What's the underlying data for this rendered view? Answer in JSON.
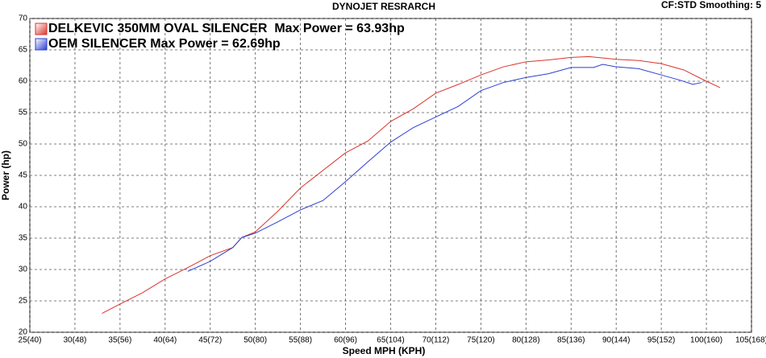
{
  "chart_data": {
    "type": "line",
    "title": "DYNOJET RESRARCH",
    "subtitle": "CF:STD Smoothing: 5",
    "x_label": "Speed MPH (KPH)",
    "y_label": "Power (hp)",
    "xlim": [
      25,
      105
    ],
    "ylim": [
      20,
      70
    ],
    "xticks": [
      {
        "value": 25,
        "label": "25(40)"
      },
      {
        "value": 30,
        "label": "30(48)"
      },
      {
        "value": 35,
        "label": "35(56)"
      },
      {
        "value": 40,
        "label": "40(64)"
      },
      {
        "value": 45,
        "label": "45(72)"
      },
      {
        "value": 50,
        "label": "50(80)"
      },
      {
        "value": 55,
        "label": "55(88)"
      },
      {
        "value": 60,
        "label": "60(96)"
      },
      {
        "value": 65,
        "label": "65(104)"
      },
      {
        "value": 70,
        "label": "70(112)"
      },
      {
        "value": 75,
        "label": "75(120)"
      },
      {
        "value": 80,
        "label": "80(128)"
      },
      {
        "value": 85,
        "label": "85(136)"
      },
      {
        "value": 90,
        "label": "90(144)"
      },
      {
        "value": 95,
        "label": "95(152)"
      },
      {
        "value": 100,
        "label": "100(160)"
      },
      {
        "value": 105,
        "label": "105(168)"
      }
    ],
    "yticks": [
      20,
      25,
      30,
      35,
      40,
      45,
      50,
      55,
      60,
      65,
      70
    ],
    "grid": true,
    "series": [
      {
        "name": "DELKEVIC 350MM OVAL SILENCER  Max Power = 63.93hp",
        "color": "#d9342b",
        "x": [
          33,
          35,
          37.5,
          40,
          42.5,
          45,
          47.5,
          48.5,
          50,
          52.5,
          55,
          57.5,
          60,
          62.5,
          65,
          67.5,
          70,
          72.5,
          75,
          77.5,
          80,
          82.5,
          85,
          87,
          90,
          92.5,
          95,
          97.5,
          100,
          101.5
        ],
        "values": [
          23,
          24.5,
          26.3,
          28.5,
          30.3,
          32.2,
          33.5,
          35.1,
          36,
          39.3,
          43,
          45.8,
          48.6,
          50.5,
          53.6,
          55.6,
          58.1,
          59.5,
          61,
          62.3,
          63.1,
          63.4,
          63.8,
          63.93,
          63.5,
          63.3,
          62.8,
          61.8,
          60,
          59
        ]
      },
      {
        "name": "OEM SILENCER Max Power = 62.69hp",
        "color": "#2b3fd1",
        "x": [
          42.5,
          45,
          47.5,
          48.5,
          50,
          52.5,
          55,
          57.5,
          60,
          62.5,
          65,
          67.5,
          70,
          72.5,
          75,
          77.5,
          80,
          82.5,
          85,
          87.5,
          88.5,
          90,
          92.5,
          95,
          97,
          98.5,
          99.5
        ],
        "values": [
          29.7,
          31.3,
          33.5,
          35.1,
          35.8,
          37.6,
          39.5,
          41,
          44,
          47.2,
          50.3,
          52.6,
          54.3,
          56,
          58.5,
          59.8,
          60.6,
          61.2,
          62.2,
          62.2,
          62.69,
          62.3,
          62,
          61,
          60.2,
          59.5,
          59.8
        ]
      }
    ]
  }
}
